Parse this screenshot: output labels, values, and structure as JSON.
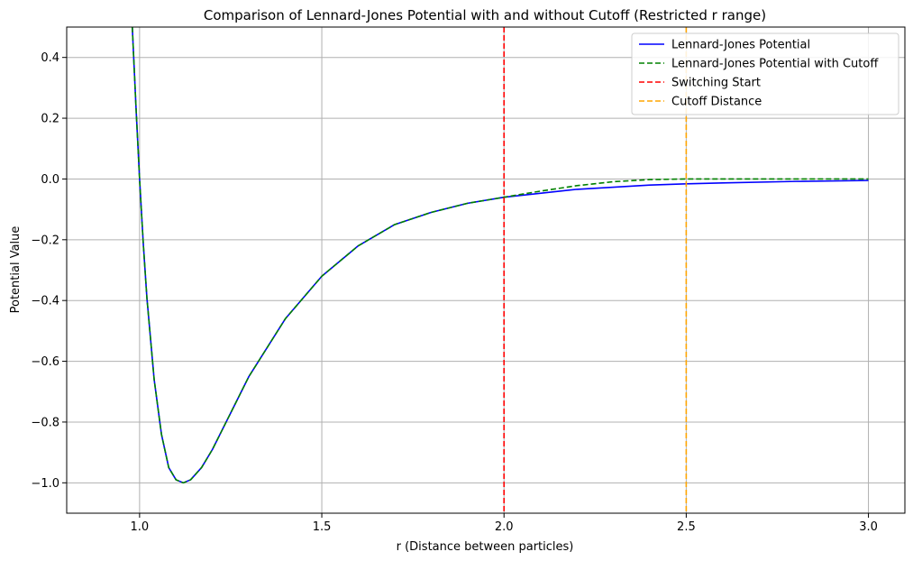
{
  "chart_data": {
    "type": "line",
    "title": "Comparison of Lennard-Jones Potential with and without Cutoff (Restricted r range)",
    "xlabel": "r (Distance between particles)",
    "ylabel": "Potential Value",
    "xlim": [
      0.8,
      3.1
    ],
    "ylim": [
      -1.1,
      0.5
    ],
    "xticks": [
      1.0,
      1.5,
      2.0,
      2.5,
      3.0
    ],
    "xtick_labels": [
      "1.0",
      "1.5",
      "2.0",
      "2.5",
      "3.0"
    ],
    "yticks": [
      -1.0,
      -0.8,
      -0.6,
      -0.4,
      -0.2,
      0.0,
      0.2,
      0.4
    ],
    "ytick_labels": [
      "−1.0",
      "−0.8",
      "−0.6",
      "−0.4",
      "−0.2",
      "0.0",
      "0.2",
      "0.4"
    ],
    "grid": true,
    "legend_position": "top-right",
    "series": [
      {
        "name": "Lennard-Jones Potential",
        "color": "#0000ff",
        "style": "solid",
        "x": [
          0.98,
          0.99,
          1.0,
          1.01,
          1.02,
          1.04,
          1.06,
          1.08,
          1.1,
          1.12,
          1.14,
          1.17,
          1.2,
          1.25,
          1.3,
          1.4,
          1.5,
          1.6,
          1.7,
          1.8,
          1.9,
          2.0,
          2.2,
          2.4,
          2.5,
          2.6,
          2.8,
          3.0
        ],
        "y": [
          0.5,
          0.24,
          0.0,
          -0.21,
          -0.39,
          -0.66,
          -0.84,
          -0.95,
          -0.99,
          -1.0,
          -0.99,
          -0.95,
          -0.89,
          -0.77,
          -0.65,
          -0.46,
          -0.32,
          -0.22,
          -0.15,
          -0.11,
          -0.08,
          -0.06,
          -0.034,
          -0.02,
          -0.016,
          -0.013,
          -0.008,
          -0.005
        ]
      },
      {
        "name": "Lennard-Jones Potential with Cutoff",
        "color": "#008000",
        "style": "dashed",
        "x": [
          0.98,
          0.99,
          1.0,
          1.01,
          1.02,
          1.04,
          1.06,
          1.08,
          1.1,
          1.12,
          1.14,
          1.17,
          1.2,
          1.25,
          1.3,
          1.4,
          1.5,
          1.6,
          1.7,
          1.8,
          1.9,
          2.0,
          2.1,
          2.2,
          2.3,
          2.4,
          2.5,
          2.6,
          2.8,
          3.0
        ],
        "y": [
          0.5,
          0.24,
          0.0,
          -0.21,
          -0.39,
          -0.66,
          -0.84,
          -0.95,
          -0.99,
          -1.0,
          -0.99,
          -0.95,
          -0.89,
          -0.77,
          -0.65,
          -0.46,
          -0.32,
          -0.22,
          -0.15,
          -0.11,
          -0.08,
          -0.06,
          -0.04,
          -0.022,
          -0.009,
          -0.002,
          0.0,
          0.0,
          0.0,
          0.0
        ]
      }
    ],
    "vlines": [
      {
        "name": "Switching Start",
        "x": 2.0,
        "color": "#ff0000",
        "style": "dashed"
      },
      {
        "name": "Cutoff Distance",
        "x": 2.5,
        "color": "#ffa500",
        "style": "dashed"
      }
    ]
  }
}
